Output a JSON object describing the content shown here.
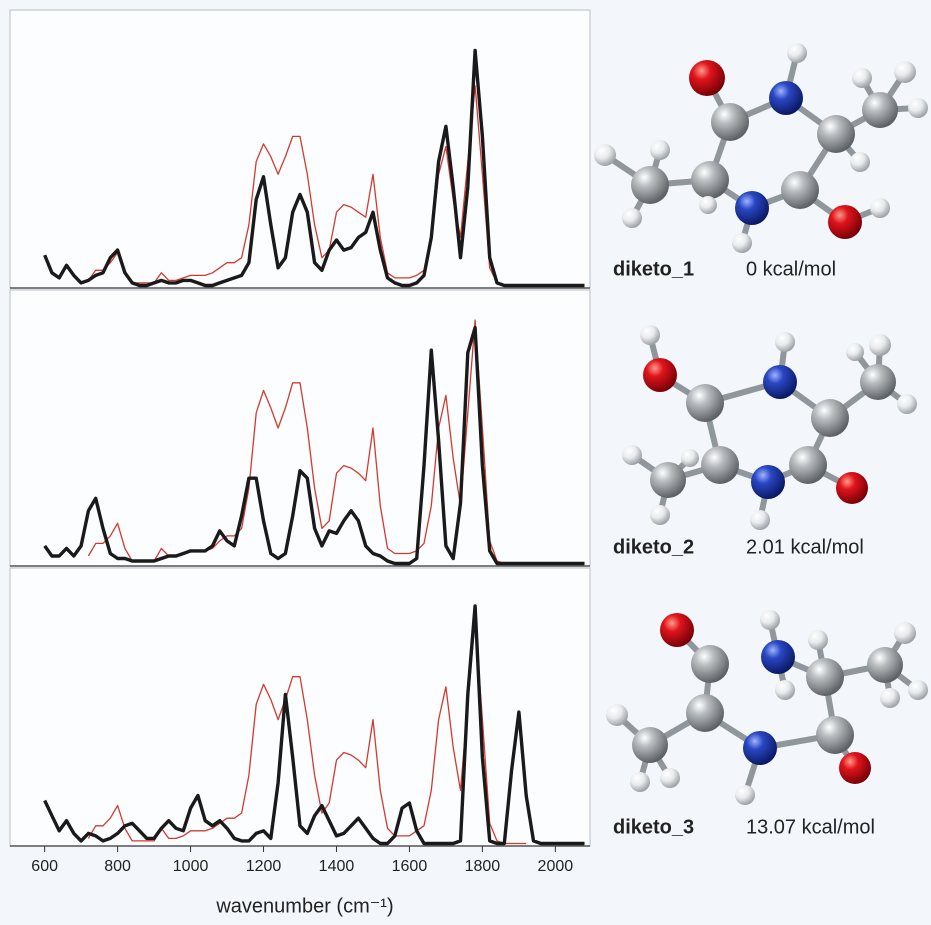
{
  "chart_data": [
    {
      "type": "line",
      "molecule": "diketo_1",
      "energy": "0 kcal/mol",
      "x": [
        600,
        620,
        640,
        660,
        680,
        700,
        720,
        740,
        760,
        780,
        800,
        820,
        840,
        860,
        880,
        900,
        920,
        940,
        960,
        980,
        1000,
        1020,
        1040,
        1060,
        1080,
        1100,
        1120,
        1140,
        1160,
        1180,
        1200,
        1220,
        1240,
        1260,
        1280,
        1300,
        1320,
        1340,
        1360,
        1380,
        1400,
        1420,
        1440,
        1460,
        1480,
        1500,
        1520,
        1540,
        1560,
        1580,
        1600,
        1620,
        1640,
        1660,
        1680,
        1700,
        1720,
        1740,
        1760,
        1780,
        1800,
        1820,
        1840,
        1860,
        1880,
        1900,
        1920,
        1940,
        1960,
        1980,
        2000,
        2020,
        2040,
        2060,
        2080
      ],
      "xlim": [
        505,
        2095
      ],
      "ylim": [
        0,
        1.1
      ],
      "series": [
        {
          "color": "#d23a2f",
          "values": [
            null,
            null,
            null,
            null,
            null,
            null,
            0.03,
            0.07,
            0.07,
            0.1,
            0.14,
            0.06,
            0.02,
            0.02,
            0.02,
            0.02,
            0.06,
            0.03,
            0.03,
            0.04,
            0.05,
            0.05,
            0.05,
            0.06,
            0.08,
            0.1,
            0.1,
            0.12,
            0.25,
            0.5,
            0.57,
            0.52,
            0.45,
            0.52,
            0.6,
            0.6,
            0.45,
            0.25,
            0.12,
            0.15,
            0.3,
            0.33,
            0.32,
            0.3,
            0.28,
            0.45,
            0.2,
            0.06,
            0.04,
            0.04,
            0.04,
            0.05,
            0.07,
            0.2,
            0.45,
            0.56,
            0.35,
            0.2,
            0.5,
            0.8,
            0.45,
            0.08,
            0.02,
            0.01,
            0.01,
            0.01,
            0.01,
            null,
            null,
            null,
            null,
            null,
            null,
            null,
            null
          ]
        },
        {
          "color": "#1a1a1a",
          "values": [
            0.13,
            0.06,
            0.04,
            0.09,
            0.05,
            0.02,
            0.03,
            0.05,
            0.06,
            0.12,
            0.15,
            0.06,
            0.02,
            0.01,
            0.01,
            0.02,
            0.03,
            0.02,
            0.02,
            0.03,
            0.03,
            0.02,
            0.01,
            0.01,
            0.02,
            0.03,
            0.04,
            0.05,
            0.1,
            0.35,
            0.44,
            0.25,
            0.08,
            0.12,
            0.3,
            0.37,
            0.3,
            0.1,
            0.07,
            0.15,
            0.19,
            0.15,
            0.16,
            0.2,
            0.22,
            0.3,
            0.15,
            0.04,
            0.02,
            0.01,
            0.01,
            0.02,
            0.05,
            0.2,
            0.5,
            0.64,
            0.4,
            0.12,
            0.4,
            0.94,
            0.6,
            0.12,
            0.02,
            0.01,
            0.01,
            0.01,
            0.01,
            0.01,
            0.01,
            0.01,
            0.01,
            0.01,
            0.01,
            0.01,
            0.01
          ]
        }
      ]
    },
    {
      "type": "line",
      "molecule": "diketo_2",
      "energy": "2.01 kcal/mol",
      "x": [
        600,
        620,
        640,
        660,
        680,
        700,
        720,
        740,
        760,
        780,
        800,
        820,
        840,
        860,
        880,
        900,
        920,
        940,
        960,
        980,
        1000,
        1020,
        1040,
        1060,
        1080,
        1100,
        1120,
        1140,
        1160,
        1180,
        1200,
        1220,
        1240,
        1260,
        1280,
        1300,
        1320,
        1340,
        1360,
        1380,
        1400,
        1420,
        1440,
        1460,
        1480,
        1500,
        1520,
        1540,
        1560,
        1580,
        1600,
        1620,
        1640,
        1660,
        1680,
        1700,
        1720,
        1740,
        1760,
        1780,
        1800,
        1820,
        1840,
        1860,
        1880,
        1900,
        1920,
        1940,
        1960,
        1980,
        2000,
        2020,
        2040,
        2060,
        2080
      ],
      "xlim": [
        505,
        2095
      ],
      "ylim": [
        0,
        1.1
      ],
      "series": [
        {
          "color": "#d23a2f",
          "values": [
            null,
            null,
            null,
            null,
            null,
            null,
            0.04,
            0.09,
            0.09,
            0.12,
            0.17,
            0.07,
            0.02,
            0.02,
            0.02,
            0.02,
            0.07,
            0.04,
            0.04,
            0.05,
            0.06,
            0.06,
            0.06,
            0.07,
            0.1,
            0.12,
            0.12,
            0.15,
            0.31,
            0.61,
            0.7,
            0.63,
            0.55,
            0.63,
            0.73,
            0.73,
            0.55,
            0.31,
            0.15,
            0.18,
            0.37,
            0.4,
            0.39,
            0.37,
            0.34,
            0.55,
            0.24,
            0.07,
            0.05,
            0.05,
            0.05,
            0.06,
            0.09,
            0.24,
            0.55,
            0.68,
            0.43,
            0.24,
            0.61,
            0.98,
            0.55,
            0.1,
            0.02,
            0.01,
            0.01,
            0.01,
            0.01,
            null,
            null,
            null,
            null,
            null,
            null,
            null,
            null
          ]
        },
        {
          "color": "#1a1a1a",
          "values": [
            0.08,
            0.04,
            0.04,
            0.07,
            0.04,
            0.08,
            0.22,
            0.27,
            0.15,
            0.05,
            0.03,
            0.03,
            0.02,
            0.02,
            0.02,
            0.02,
            0.03,
            0.04,
            0.04,
            0.05,
            0.06,
            0.06,
            0.06,
            0.08,
            0.14,
            0.1,
            0.08,
            0.2,
            0.35,
            0.35,
            0.18,
            0.05,
            0.03,
            0.05,
            0.2,
            0.38,
            0.35,
            0.15,
            0.08,
            0.14,
            0.13,
            0.18,
            0.22,
            0.18,
            0.08,
            0.05,
            0.04,
            0.02,
            0.01,
            0.01,
            0.01,
            0.03,
            0.4,
            0.86,
            0.5,
            0.08,
            0.03,
            0.25,
            0.85,
            0.95,
            0.4,
            0.06,
            0.01,
            0.01,
            0.01,
            0.01,
            0.01,
            0.01,
            0.01,
            0.01,
            0.01,
            0.01,
            0.01,
            0.01,
            0.01
          ]
        }
      ]
    },
    {
      "type": "line",
      "molecule": "diketo_3",
      "energy": "13.07 kcal/mol",
      "x": [
        600,
        620,
        640,
        660,
        680,
        700,
        720,
        740,
        760,
        780,
        800,
        820,
        840,
        860,
        880,
        900,
        920,
        940,
        960,
        980,
        1000,
        1020,
        1040,
        1060,
        1080,
        1100,
        1120,
        1140,
        1160,
        1180,
        1200,
        1220,
        1240,
        1260,
        1280,
        1300,
        1320,
        1340,
        1360,
        1380,
        1400,
        1420,
        1440,
        1460,
        1480,
        1500,
        1520,
        1540,
        1560,
        1580,
        1600,
        1620,
        1640,
        1660,
        1680,
        1700,
        1720,
        1740,
        1760,
        1780,
        1800,
        1820,
        1840,
        1860,
        1880,
        1900,
        1920,
        1940,
        1960,
        1980,
        2000,
        2020,
        2040,
        2060,
        2080
      ],
      "xlim": [
        505,
        2095
      ],
      "ylim": [
        0,
        1.1
      ],
      "xticks": [
        600,
        800,
        1000,
        1200,
        1400,
        1600,
        1800,
        2000
      ],
      "xlabel": "wavenumber (cm⁻¹)",
      "series": [
        {
          "color": "#d23a2f",
          "values": [
            null,
            null,
            null,
            null,
            null,
            null,
            0.03,
            0.08,
            0.08,
            0.11,
            0.16,
            0.07,
            0.02,
            0.02,
            0.02,
            0.02,
            0.07,
            0.03,
            0.03,
            0.04,
            0.06,
            0.06,
            0.06,
            0.07,
            0.09,
            0.11,
            0.11,
            0.13,
            0.28,
            0.56,
            0.64,
            0.58,
            0.5,
            0.58,
            0.67,
            0.67,
            0.5,
            0.28,
            0.13,
            0.17,
            0.34,
            0.37,
            0.36,
            0.34,
            0.31,
            0.5,
            0.22,
            0.07,
            0.04,
            0.04,
            0.04,
            0.06,
            0.08,
            0.22,
            0.5,
            0.63,
            0.39,
            0.22,
            0.56,
            0.9,
            0.5,
            0.09,
            0.02,
            0.01,
            0.01,
            0.01,
            0.01,
            null,
            null,
            null,
            null,
            null,
            null,
            null,
            null
          ]
        },
        {
          "color": "#1a1a1a",
          "values": [
            0.18,
            0.12,
            0.06,
            0.1,
            0.05,
            0.02,
            0.05,
            0.04,
            0.02,
            0.03,
            0.05,
            0.08,
            0.09,
            0.06,
            0.03,
            0.03,
            0.07,
            0.1,
            0.07,
            0.06,
            0.15,
            0.2,
            0.1,
            0.08,
            0.1,
            0.07,
            0.03,
            0.02,
            0.02,
            0.05,
            0.06,
            0.03,
            0.25,
            0.6,
            0.35,
            0.08,
            0.05,
            0.12,
            0.16,
            0.1,
            0.04,
            0.05,
            0.08,
            0.11,
            0.07,
            0.03,
            0.01,
            0.01,
            0.04,
            0.15,
            0.17,
            0.06,
            0.01,
            0.01,
            0.01,
            0.01,
            0.01,
            0.02,
            0.6,
            0.95,
            0.35,
            0.02,
            0.01,
            0.01,
            0.3,
            0.53,
            0.2,
            0.02,
            0.01,
            0.01,
            0.01,
            0.01,
            0.01,
            0.01,
            0.01
          ]
        }
      ]
    }
  ]
}
